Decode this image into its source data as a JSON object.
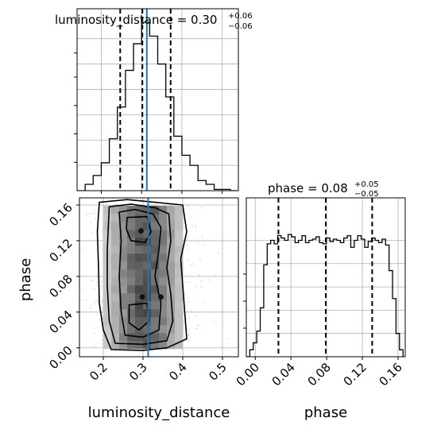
{
  "chart_data": [
    {
      "type": "histogram",
      "panel": "luminosity_distance marginal",
      "title": "luminosity_distance = 0.30",
      "title_sup": "+0.06",
      "title_sub": "−0.06",
      "xlim": [
        0.14,
        0.54
      ],
      "bin_edges": [
        0.14,
        0.16,
        0.18,
        0.2,
        0.22,
        0.24,
        0.26,
        0.28,
        0.3,
        0.32,
        0.34,
        0.36,
        0.38,
        0.4,
        0.42,
        0.44,
        0.46,
        0.48,
        0.5,
        0.52,
        0.54
      ],
      "counts": [
        0.0,
        0.025,
        0.06,
        0.11,
        0.205,
        0.33,
        0.475,
        0.58,
        0.665,
        0.61,
        0.5,
        0.37,
        0.215,
        0.14,
        0.1,
        0.04,
        0.025,
        0.005,
        0.005,
        0.0
      ],
      "quantiles": [
        0.247,
        0.302,
        0.372
      ],
      "truth": 0.313,
      "grid": true
    },
    {
      "type": "histogram",
      "panel": "phase marginal",
      "title": "phase = 0.08",
      "title_sup": "+0.05",
      "title_sub": "−0.05",
      "xlim": [
        -0.01,
        0.168
      ],
      "bin_edges": [
        -0.01,
        -0.0061,
        -0.0022,
        0.0017,
        0.0056,
        0.0095,
        0.0134,
        0.0173,
        0.0212,
        0.0251,
        0.029,
        0.0329,
        0.0368,
        0.0407,
        0.0446,
        0.0485,
        0.0524,
        0.0563,
        0.0602,
        0.0641,
        0.068,
        0.0719,
        0.0758,
        0.0797,
        0.0836,
        0.0875,
        0.0914,
        0.0953,
        0.0992,
        0.1031,
        0.107,
        0.1109,
        0.1148,
        0.1187,
        0.1226,
        0.1265,
        0.1304,
        0.1343,
        0.1382,
        0.1421,
        0.146,
        0.1499,
        0.1538,
        0.1577,
        0.1616,
        0.1655
      ],
      "counts": [
        0.0,
        0.03,
        0.06,
        0.11,
        0.21,
        0.395,
        0.485,
        0.5,
        0.485,
        0.52,
        0.51,
        0.5,
        0.525,
        0.515,
        0.49,
        0.5,
        0.52,
        0.49,
        0.5,
        0.505,
        0.515,
        0.49,
        0.485,
        0.51,
        0.495,
        0.505,
        0.5,
        0.49,
        0.51,
        0.52,
        0.47,
        0.5,
        0.52,
        0.505,
        0.47,
        0.495,
        0.51,
        0.5,
        0.49,
        0.505,
        0.48,
        0.37,
        0.25,
        0.1,
        0.03
      ],
      "quantiles": [
        0.026,
        0.079,
        0.131
      ],
      "grid": true
    },
    {
      "type": "scatter",
      "panel": "joint luminosity_distance vs phase",
      "xlabel": "luminosity_distance",
      "ylabel": "phase",
      "xlim": [
        0.14,
        0.54
      ],
      "ylim": [
        -0.01,
        0.168
      ],
      "xticks": [
        "0.2",
        "0.3",
        "0.4",
        "0.5"
      ],
      "xtick_values": [
        0.2,
        0.3,
        0.4,
        0.5
      ],
      "yticks": [
        "0.00",
        "0.04",
        "0.08",
        "0.12",
        "0.16"
      ],
      "ytick_values": [
        0.0,
        0.04,
        0.08,
        0.12,
        0.16
      ],
      "truth_x": 0.313,
      "x_mean": 0.303,
      "x_sd": 0.055,
      "y_range": [
        0.0,
        0.16
      ],
      "contour_levels": [
        1,
        2,
        3,
        4
      ],
      "grid": true
    },
    {
      "type": "axis",
      "panel": "phase marginal x-axis",
      "xlabel": "phase",
      "xticks": [
        "0.00",
        "0.04",
        "0.08",
        "0.12",
        "0.16"
      ],
      "xtick_values": [
        0.0,
        0.04,
        0.08,
        0.12,
        0.16
      ]
    }
  ],
  "colors": {
    "truth": "#1f77b4",
    "line": "#000000",
    "grid": "#b0b0b0",
    "scatter": "#9a9a9a"
  }
}
